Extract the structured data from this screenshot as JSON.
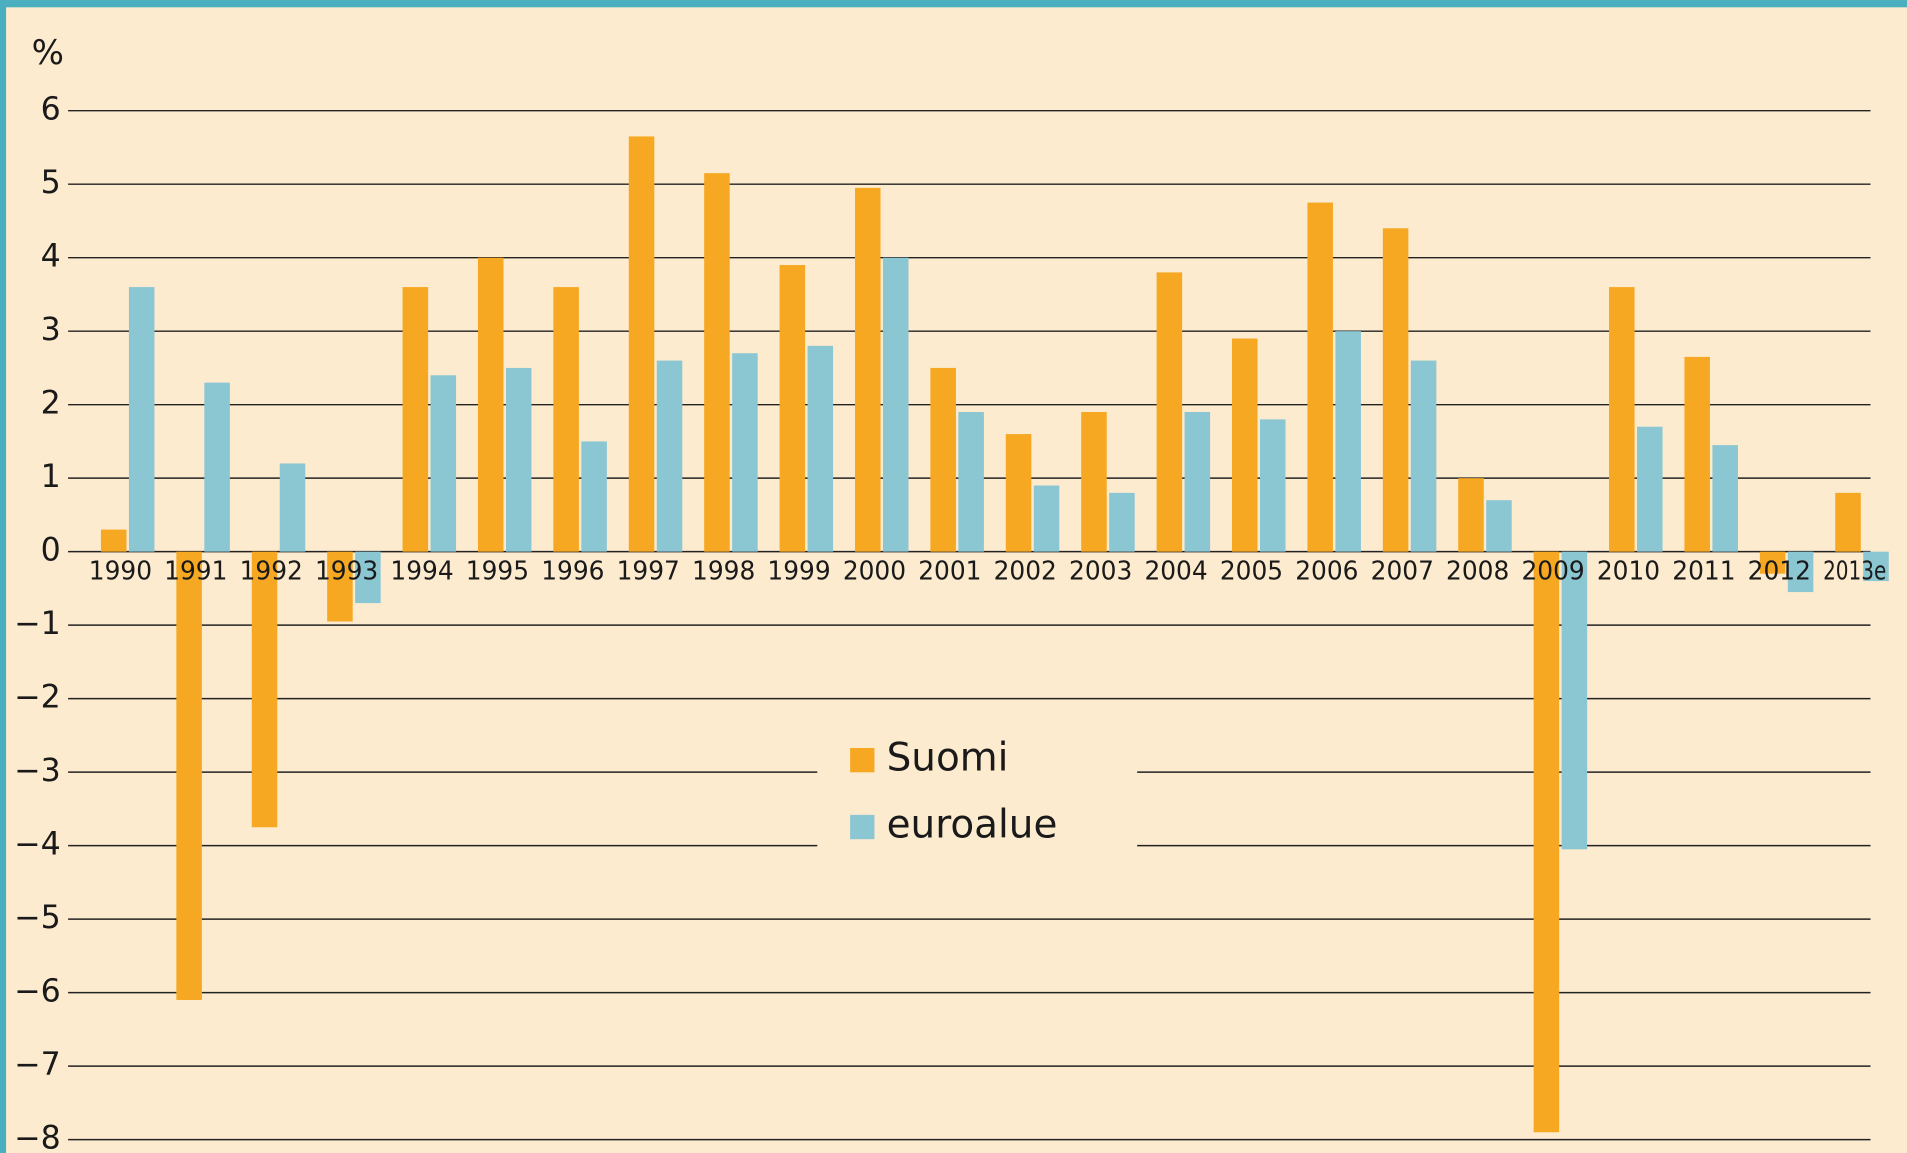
{
  "chart_data": {
    "type": "bar",
    "y_label": "%",
    "categories": [
      "1990",
      "1991",
      "1992",
      "1993",
      "1994",
      "1995",
      "1996",
      "1997",
      "1998",
      "1999",
      "2000",
      "2001",
      "2002",
      "2003",
      "2004",
      "2005",
      "2006",
      "2007",
      "2008",
      "2009",
      "2010",
      "2011",
      "2012",
      "2013e"
    ],
    "series": [
      {
        "name": "Suomi",
        "color": "#f7a823",
        "values": [
          0.3,
          -6.1,
          -3.75,
          -0.95,
          3.6,
          4.0,
          3.6,
          5.65,
          5.15,
          3.9,
          4.95,
          2.5,
          1.6,
          1.9,
          3.8,
          2.9,
          4.75,
          4.4,
          1.0,
          -7.9,
          3.6,
          2.65,
          -0.3,
          0.8
        ]
      },
      {
        "name": "euroalue",
        "color": "#8bc6d3",
        "values": [
          3.6,
          2.3,
          1.2,
          -0.7,
          2.4,
          2.5,
          1.5,
          2.6,
          2.7,
          2.8,
          4.0,
          1.9,
          0.9,
          0.8,
          1.9,
          1.8,
          3.0,
          2.6,
          0.7,
          -4.05,
          1.7,
          1.45,
          -0.55,
          -0.4
        ]
      }
    ],
    "ylim": [
      -8,
      6
    ],
    "yticks": [
      {
        "value": -8,
        "label": "−8"
      },
      {
        "value": -7,
        "label": "−7"
      },
      {
        "value": -6,
        "label": "−6"
      },
      {
        "value": -5,
        "label": "−5"
      },
      {
        "value": -4,
        "label": "−4"
      },
      {
        "value": -3,
        "label": "−3"
      },
      {
        "value": -2,
        "label": "−2"
      },
      {
        "value": -1,
        "label": "−1"
      },
      0,
      1,
      2,
      3,
      4,
      5,
      6
    ],
    "grid": true
  }
}
